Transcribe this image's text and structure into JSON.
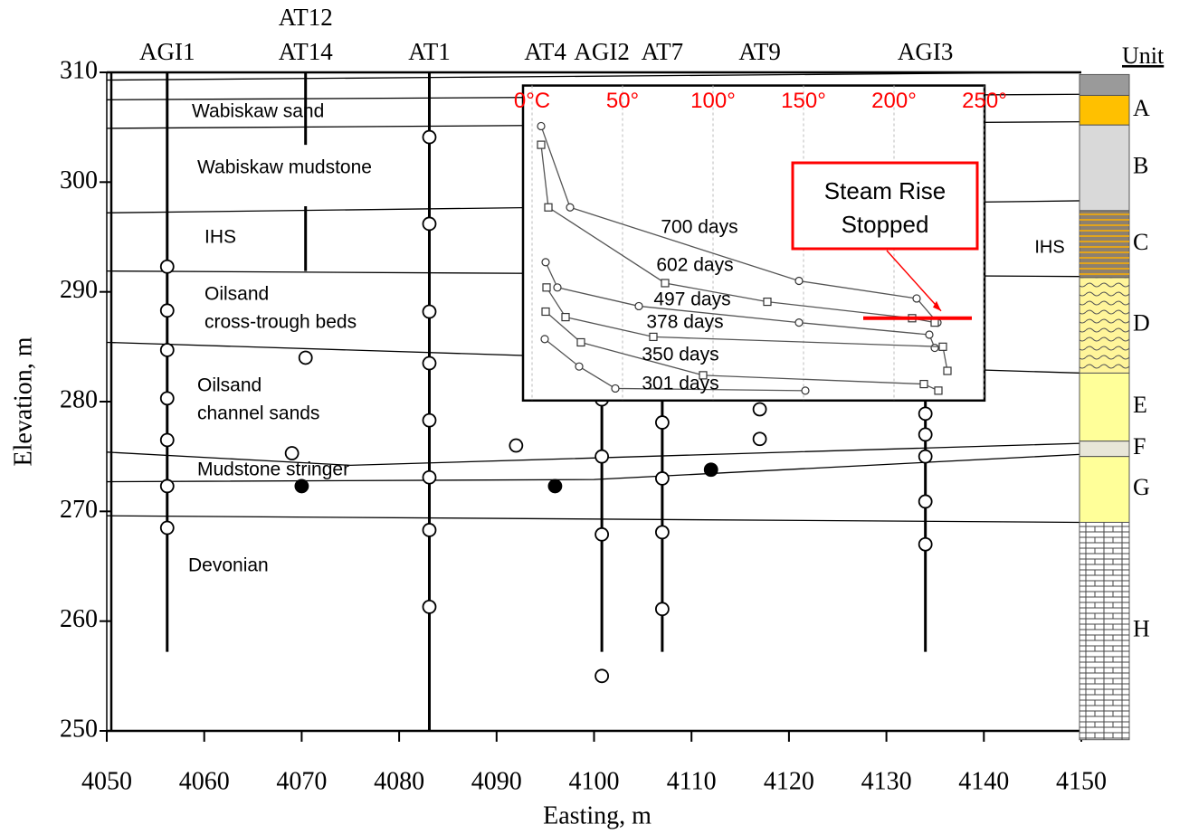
{
  "chart_data": {
    "type": "cross-section",
    "xlabel": "Easting, m",
    "ylabel": "Elevation, m",
    "xlim": [
      4050,
      4150
    ],
    "xticks": [
      4050,
      4060,
      4070,
      4080,
      4090,
      4100,
      4110,
      4120,
      4130,
      4140,
      4150
    ],
    "ylim": [
      250,
      310
    ],
    "yticks": [
      250,
      260,
      270,
      280,
      290,
      300,
      310
    ],
    "wells": [
      {
        "name": [
          "AGI1"
        ],
        "x": 4056.2,
        "segments": [
          [
            310,
            257.2
          ]
        ],
        "points": [
          292.3,
          288.3,
          284.7,
          280.3,
          276.5,
          272.3,
          268.5
        ]
      },
      {
        "name": [
          "AT12",
          "AT14"
        ],
        "x": 4070.4,
        "segments": [
          [
            310,
            303.4
          ],
          [
            297.8,
            291.9
          ]
        ],
        "points": [
          284
        ]
      },
      {
        "name": [
          "AT1"
        ],
        "x": 4083.1,
        "segments": [
          [
            310,
            250
          ]
        ],
        "points": [
          304.1,
          296.2,
          288.2,
          283.5,
          278.3,
          273.1,
          268.3,
          261.3
        ]
      },
      {
        "name": [
          "AT4"
        ],
        "x": 4095,
        "segments": [],
        "points": []
      },
      {
        "name": [
          "AGI2"
        ],
        "x": 4100.8,
        "segments": [
          [
            281,
            257.2
          ]
        ],
        "points": [
          280.2,
          275,
          267.9,
          255
        ]
      },
      {
        "name": [
          "AT7"
        ],
        "x": 4107,
        "segments": [
          [
            281,
            257.2
          ]
        ],
        "points": [
          278.1,
          273,
          268.1,
          261.1
        ]
      },
      {
        "name": [
          "AT9"
        ],
        "x": 4117,
        "segments": [],
        "points": []
      },
      {
        "name": [
          "AGI3"
        ],
        "x": 4134,
        "segments": [
          [
            281,
            257.2
          ]
        ],
        "points": [
          278.9,
          277,
          275,
          270.9,
          267
        ]
      }
    ],
    "free_points": [
      {
        "x": 4069,
        "y": 275.3,
        "filled": false
      },
      {
        "x": 4092,
        "y": 276,
        "filled": false
      },
      {
        "x": 4117,
        "y": 276.6,
        "filled": false
      },
      {
        "x": 4117,
        "y": 279.3,
        "filled": false
      },
      {
        "x": 4070,
        "y": 272.3,
        "filled": true
      },
      {
        "x": 4096,
        "y": 272.3,
        "filled": true
      },
      {
        "x": 4112,
        "y": 273.8,
        "filled": true
      }
    ],
    "horizons": [
      {
        "x": [
          4050,
          4150
        ],
        "y": [
          309.3,
          310
        ]
      },
      {
        "x": [
          4050,
          4150
        ],
        "y": [
          307.5,
          308
        ]
      },
      {
        "x": [
          4050,
          4150
        ],
        "y": [
          304.9,
          305.5
        ]
      },
      {
        "x": [
          4050,
          4150
        ],
        "y": [
          297.2,
          298.3
        ]
      },
      {
        "x": [
          4050,
          4150
        ],
        "y": [
          291.9,
          291.4
        ]
      },
      {
        "x": [
          4050,
          4150
        ],
        "y": [
          285.4,
          282.6
        ]
      },
      {
        "x": [
          4050,
          4075,
          4150
        ],
        "y": [
          275.4,
          274.2,
          276.2
        ]
      },
      {
        "x": [
          4050,
          4100,
          4150
        ],
        "y": [
          272.7,
          272.9,
          275.2
        ]
      },
      {
        "x": [
          4050,
          4150
        ],
        "y": [
          269.6,
          269
        ]
      }
    ],
    "layer_labels": [
      [
        "Wabiskaw sand"
      ],
      [
        "Wabiskaw mudstone"
      ],
      [
        "IHS"
      ],
      [
        "Oilsand",
        "cross-trough beds"
      ],
      [
        "Oilsand",
        "channel sands"
      ],
      [
        "Mudstone stringer"
      ],
      [
        "Devonian"
      ]
    ],
    "units": {
      "title": "Unit",
      "note": "IHS",
      "items": [
        {
          "label": null,
          "top": 309.8,
          "bottom": 307.9,
          "color": "#9a9a9a"
        },
        {
          "label": "A",
          "top": 307.9,
          "bottom": 305.2,
          "color": "#ffc000"
        },
        {
          "label": "B",
          "top": 305.2,
          "bottom": 297.4,
          "color": "#d9d9d9"
        },
        {
          "label": "C",
          "top": 297.4,
          "bottom": 291.3,
          "color": "#8c8070",
          "pattern": "stripes"
        },
        {
          "label": "D",
          "top": 291.3,
          "bottom": 282.6,
          "color": "#fff59a",
          "pattern": "waves"
        },
        {
          "label": "E",
          "top": 282.6,
          "bottom": 276.4,
          "color": "#ffff99"
        },
        {
          "label": "F",
          "top": 276.4,
          "bottom": 275,
          "color": "#e8e6d8"
        },
        {
          "label": "G",
          "top": 275,
          "bottom": 269,
          "color": "#ffff99"
        },
        {
          "label": "H",
          "top": 269,
          "bottom": 249.2,
          "color": "#ffffff",
          "pattern": "brick"
        }
      ]
    },
    "inset": {
      "type": "line",
      "xlim": [
        -5,
        250
      ],
      "ylim": [
        280.1,
        308.8
      ],
      "tick_color": "red",
      "grid": true,
      "xticks": [
        {
          "value": 0,
          "label": "0°C"
        },
        {
          "value": 50,
          "label": "50°"
        },
        {
          "value": 100,
          "label": "100°"
        },
        {
          "value": 150,
          "label": "150°"
        },
        {
          "value": 200,
          "label": "200°"
        },
        {
          "value": 250,
          "label": "250°"
        }
      ],
      "series": [
        {
          "name": "700 days",
          "marker": "circle",
          "values": [
            5,
            21,
            147.5,
            212.5,
            224
          ],
          "y": [
            305.1,
            297.7,
            291,
            289.4,
            287.2
          ]
        },
        {
          "name": "602 days",
          "marker": "square",
          "values": [
            5,
            9,
            73.5,
            130,
            210,
            222.5
          ],
          "y": [
            303.4,
            297.7,
            290.8,
            289.1,
            287.6,
            287.2
          ]
        },
        {
          "name": "497 days",
          "marker": "circle",
          "values": [
            7.5,
            14,
            59,
            147.5,
            219.5,
            222.5
          ],
          "y": [
            292.7,
            290.4,
            288.7,
            287.2,
            286.1,
            284.9
          ]
        },
        {
          "name": "378 days",
          "marker": "square",
          "values": [
            8,
            18.5,
            67,
            227,
            229.5
          ],
          "y": [
            290.4,
            287.7,
            285.9,
            285,
            282.8
          ]
        },
        {
          "name": "350 days",
          "marker": "square",
          "values": [
            7.5,
            27,
            94.5,
            216.5,
            224.5
          ],
          "y": [
            288.2,
            285.4,
            282.4,
            281.6,
            281
          ]
        },
        {
          "name": "301 days",
          "marker": "circle",
          "values": [
            7,
            26,
            46,
            151
          ],
          "y": [
            285.7,
            283.2,
            281.2,
            281
          ]
        }
      ],
      "annotation": {
        "text": [
          "Steam Rise",
          "Stopped"
        ],
        "color": "red",
        "marker_y": 287.6,
        "marker_x": [
          183,
          243
        ]
      }
    }
  }
}
